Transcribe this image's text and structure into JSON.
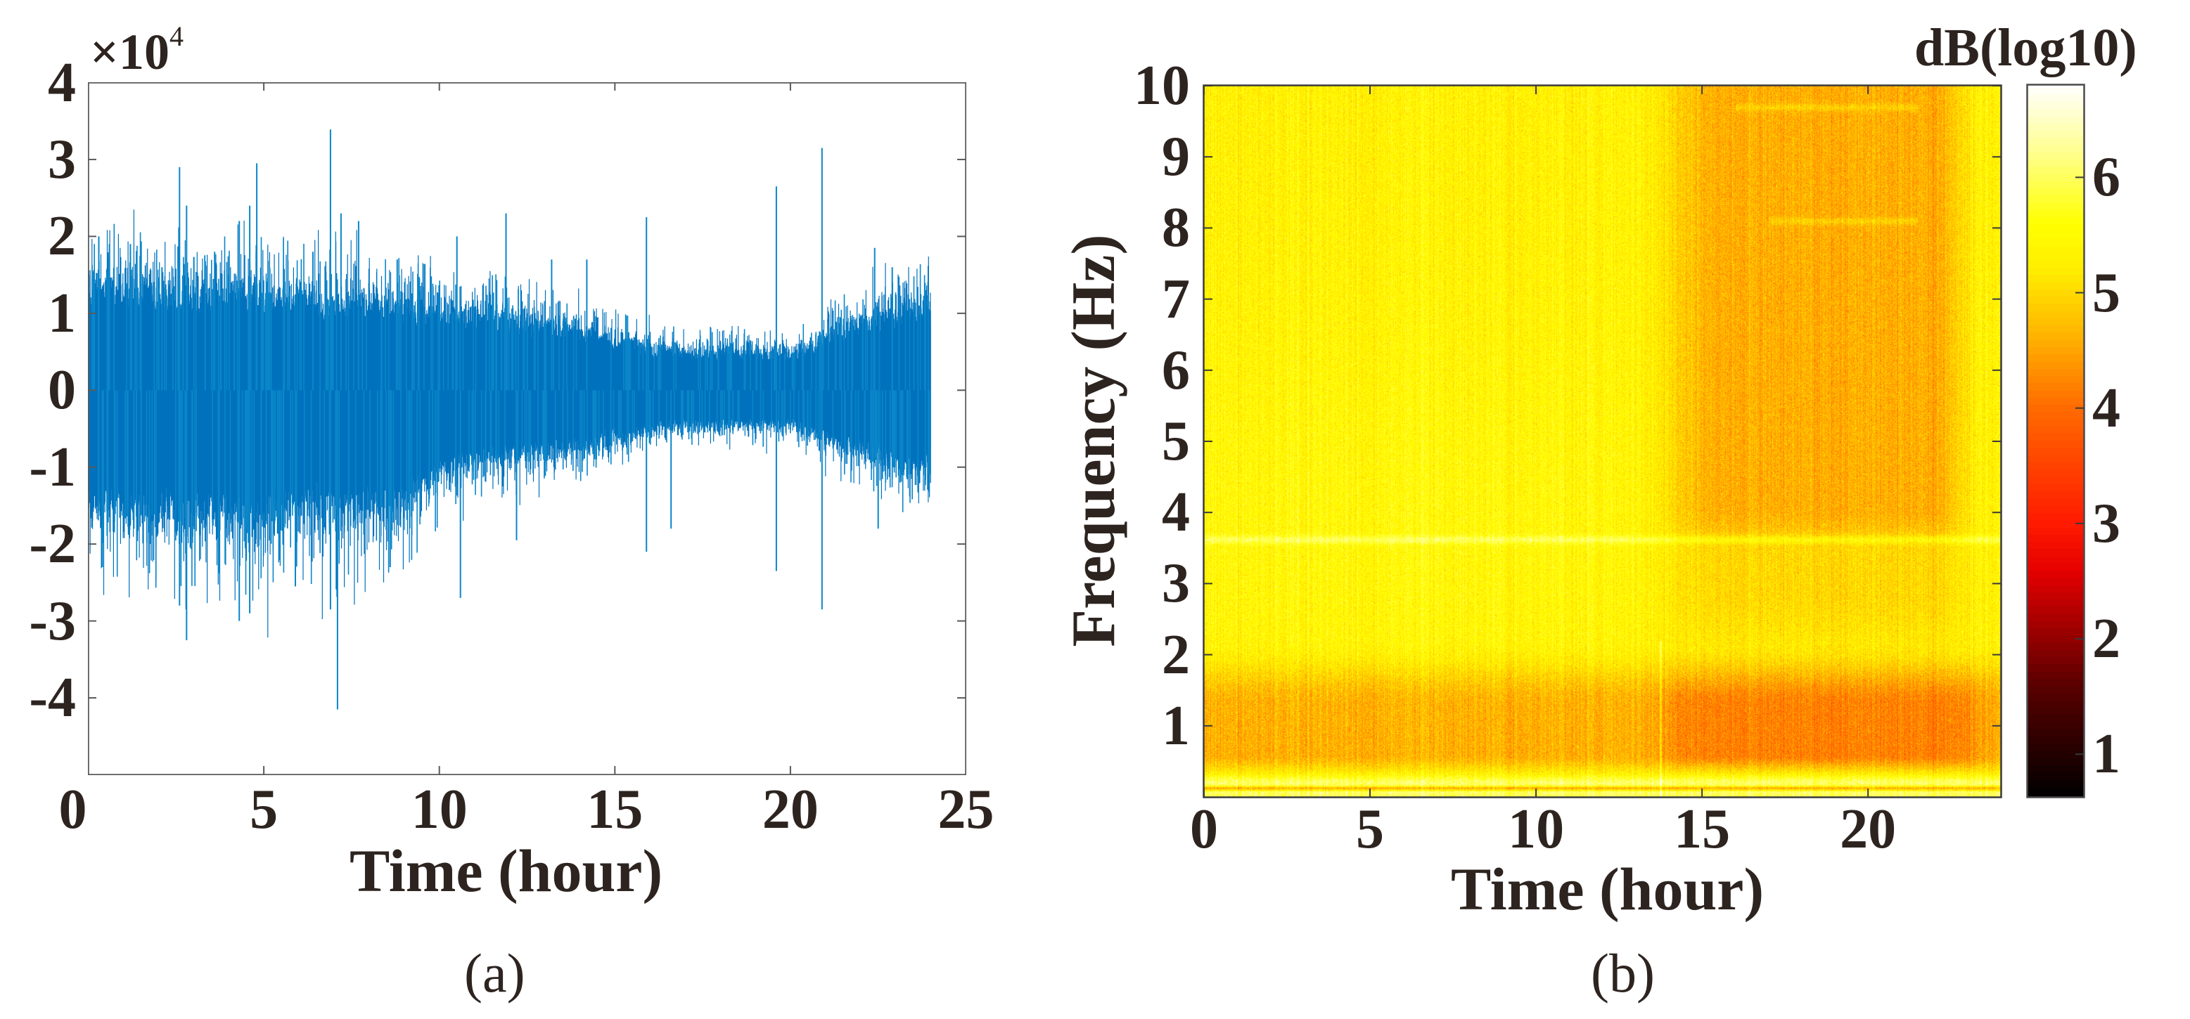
{
  "figure": {
    "panel_a_label": "(a)",
    "panel_b_label": "(b)"
  },
  "chart_data": [
    {
      "id": "a",
      "type": "line",
      "title": "",
      "xlabel": "Time (hour)",
      "ylabel": "",
      "y_multiplier": "×10",
      "y_multiplier_exponent": "4",
      "xlim": [
        0,
        25
      ],
      "ylim": [
        -5,
        4
      ],
      "x_ticks": [
        0,
        5,
        10,
        15,
        20,
        25
      ],
      "x_tick_labels": [
        "0",
        "5",
        "10",
        "15",
        "20",
        "25"
      ],
      "y_ticks": [
        4,
        3,
        2,
        1,
        0,
        -1,
        -2,
        -3,
        -4
      ],
      "y_tick_labels": [
        "4",
        "3",
        "2",
        "1",
        "0",
        "-1",
        "-2",
        "-3",
        "-4"
      ],
      "grid": false,
      "line_color": "#0072BD",
      "spike_color": "#0a86c9",
      "signal_duration_hours": 24,
      "envelope": {
        "hours": [
          0,
          1,
          2,
          3,
          4,
          5,
          6,
          7,
          8,
          9,
          10,
          11,
          12,
          13,
          14,
          15,
          16,
          17,
          18,
          19,
          20,
          21,
          22,
          23,
          24
        ],
        "upper_x1e4": [
          1.25,
          1.2,
          1.15,
          1.1,
          1.1,
          1.1,
          1.05,
          1.0,
          1.0,
          0.95,
          0.9,
          0.85,
          0.8,
          0.75,
          0.7,
          0.6,
          0.5,
          0.45,
          0.45,
          0.45,
          0.4,
          0.6,
          0.75,
          0.9,
          1.05
        ],
        "lower_x1e4": [
          -1.35,
          -1.4,
          -1.4,
          -1.45,
          -1.45,
          -1.45,
          -1.4,
          -1.35,
          -1.35,
          -1.25,
          -1.0,
          -0.8,
          -0.75,
          -0.7,
          -0.65,
          -0.55,
          -0.45,
          -0.4,
          -0.4,
          -0.4,
          -0.4,
          -0.55,
          -0.7,
          -0.85,
          -0.95
        ]
      },
      "spikes": [
        {
          "t": 0.3,
          "v": 2.0
        },
        {
          "t": 0.6,
          "v": 1.9
        },
        {
          "t": 1.2,
          "v": 1.9
        },
        {
          "t": 2.1,
          "v": 1.6
        },
        {
          "t": 2.6,
          "v": 2.9
        },
        {
          "t": 2.8,
          "v": 2.4
        },
        {
          "t": 3.6,
          "v": 1.8
        },
        {
          "t": 4.3,
          "v": 2.2
        },
        {
          "t": 4.6,
          "v": 2.4
        },
        {
          "t": 4.8,
          "v": 2.95
        },
        {
          "t": 6.4,
          "v": 1.8
        },
        {
          "t": 6.9,
          "v": 3.39
        },
        {
          "t": 7.2,
          "v": 2.3
        },
        {
          "t": 7.7,
          "v": 2.2
        },
        {
          "t": 8.8,
          "v": 1.7
        },
        {
          "t": 10.5,
          "v": 2.0
        },
        {
          "t": 11.9,
          "v": 2.3
        },
        {
          "t": 13.2,
          "v": 1.7
        },
        {
          "t": 14.2,
          "v": 1.7
        },
        {
          "t": 15.9,
          "v": 2.25
        },
        {
          "t": 19.6,
          "v": 2.65
        },
        {
          "t": 20.9,
          "v": 3.15
        },
        {
          "t": 22.4,
          "v": 1.85
        },
        {
          "t": 22.9,
          "v": 1.6
        },
        {
          "t": 0.4,
          "v": -2.3
        },
        {
          "t": 1.3,
          "v": -1.8
        },
        {
          "t": 2.6,
          "v": -2.8
        },
        {
          "t": 2.8,
          "v": -3.25
        },
        {
          "t": 4.3,
          "v": -3.0
        },
        {
          "t": 4.6,
          "v": -2.9
        },
        {
          "t": 5.9,
          "v": -2.55
        },
        {
          "t": 6.9,
          "v": -2.85
        },
        {
          "t": 7.1,
          "v": -4.15
        },
        {
          "t": 8.6,
          "v": -2.3
        },
        {
          "t": 10.6,
          "v": -2.7
        },
        {
          "t": 12.2,
          "v": -1.95
        },
        {
          "t": 15.9,
          "v": -2.1
        },
        {
          "t": 16.6,
          "v": -1.8
        },
        {
          "t": 19.6,
          "v": -2.35
        },
        {
          "t": 20.9,
          "v": -2.85
        },
        {
          "t": 22.5,
          "v": -1.8
        }
      ]
    },
    {
      "id": "b",
      "type": "heatmap",
      "title": "",
      "xlabel": "Time (hour)",
      "ylabel": "Frequency (Hz)",
      "colorbar_label": "dB(log10)",
      "colormap": "hot",
      "xlim": [
        0,
        24
      ],
      "ylim": [
        0,
        10
      ],
      "clim": [
        0.63,
        6.8
      ],
      "x_ticks": [
        0,
        5,
        10,
        15,
        20
      ],
      "x_tick_labels": [
        "0",
        "5",
        "10",
        "15",
        "20"
      ],
      "y_ticks": [
        10,
        9,
        8,
        7,
        6,
        5,
        4,
        3,
        2,
        1
      ],
      "y_tick_labels": [
        "10",
        "9",
        "8",
        "7",
        "6",
        "5",
        "4",
        "3",
        "2",
        "1"
      ],
      "colorbar_ticks": [
        6,
        5,
        4,
        3,
        2,
        1
      ],
      "colorbar_tick_labels": [
        "6",
        "5",
        "4",
        "3",
        "2",
        "1"
      ],
      "colorbar_stops": [
        {
          "v": 0.63,
          "color": "#000000"
        },
        {
          "v": 1.6,
          "color": "#5a0000"
        },
        {
          "v": 2.6,
          "color": "#e60000"
        },
        {
          "v": 3.0,
          "color": "#ff1a00"
        },
        {
          "v": 4.0,
          "color": "#ff6a00"
        },
        {
          "v": 4.6,
          "color": "#ffb000"
        },
        {
          "v": 5.2,
          "color": "#ffee00"
        },
        {
          "v": 5.6,
          "color": "#ffff00"
        },
        {
          "v": 6.2,
          "color": "#ffff8a"
        },
        {
          "v": 6.8,
          "color": "#ffffff"
        }
      ],
      "features": {
        "background_level": 5.35,
        "low_freq_band": {
          "f_min": 0.4,
          "f_max": 1.6,
          "level": 4.6,
          "strongest_hours": [
            14,
            23
          ],
          "strongest_level": 4.2
        },
        "bright_low_line": {
          "f": 0.2,
          "level": 6.0
        },
        "dark_thin_line": {
          "f": 0.13,
          "level": 4.0
        },
        "harmonic_line": {
          "f": 3.62,
          "level": 6.0
        },
        "dark_region": {
          "t_min": 14.5,
          "t_max": 22.5,
          "f_min": 3.8,
          "f_max": 10,
          "level": 4.6
        },
        "faint_lines": [
          {
            "f": 9.7,
            "t_min": 16,
            "t_max": 21.5
          },
          {
            "f": 8.1,
            "t_min": 17,
            "t_max": 21.5
          }
        ],
        "vertical_line": {
          "t": 13.75,
          "f_max": 2.2
        }
      }
    }
  ]
}
